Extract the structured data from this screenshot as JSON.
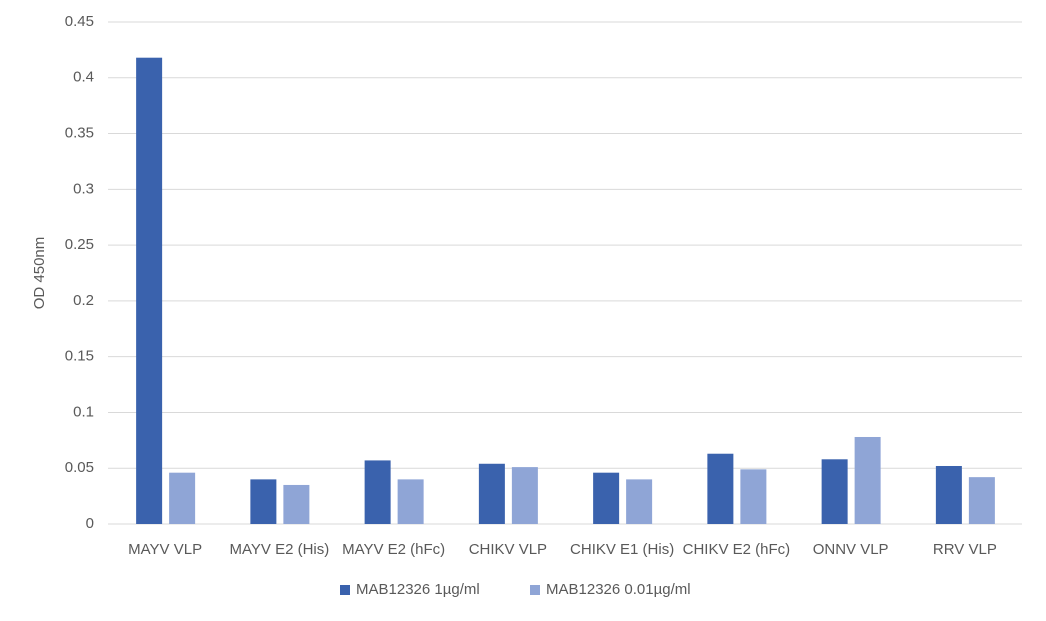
{
  "chart_data": {
    "type": "bar",
    "y_label": "OD 450nm",
    "categories": [
      "MAYV VLP",
      "MAYV E2 (His)",
      "MAYV E2 (hFc)",
      "CHIKV VLP",
      "CHIKV E1 (His)",
      "CHIKV E2 (hFc)",
      "ONNV VLP",
      "RRV VLP"
    ],
    "series": [
      {
        "name": "MAB12326 1µg/ml",
        "color": "#3a62ad",
        "values": [
          0.418,
          0.04,
          0.057,
          0.054,
          0.046,
          0.063,
          0.058,
          0.052
        ]
      },
      {
        "name": "MAB12326 0.01µg/ml",
        "color": "#8fa5d6",
        "values": [
          0.046,
          0.035,
          0.04,
          0.051,
          0.04,
          0.049,
          0.078,
          0.042
        ]
      }
    ],
    "ylim": [
      0,
      0.45
    ],
    "yticks": [
      0,
      0.05,
      0.1,
      0.15,
      0.2,
      0.25,
      0.3,
      0.35,
      0.4,
      0.45
    ],
    "grid": true,
    "legend": "bottom"
  }
}
